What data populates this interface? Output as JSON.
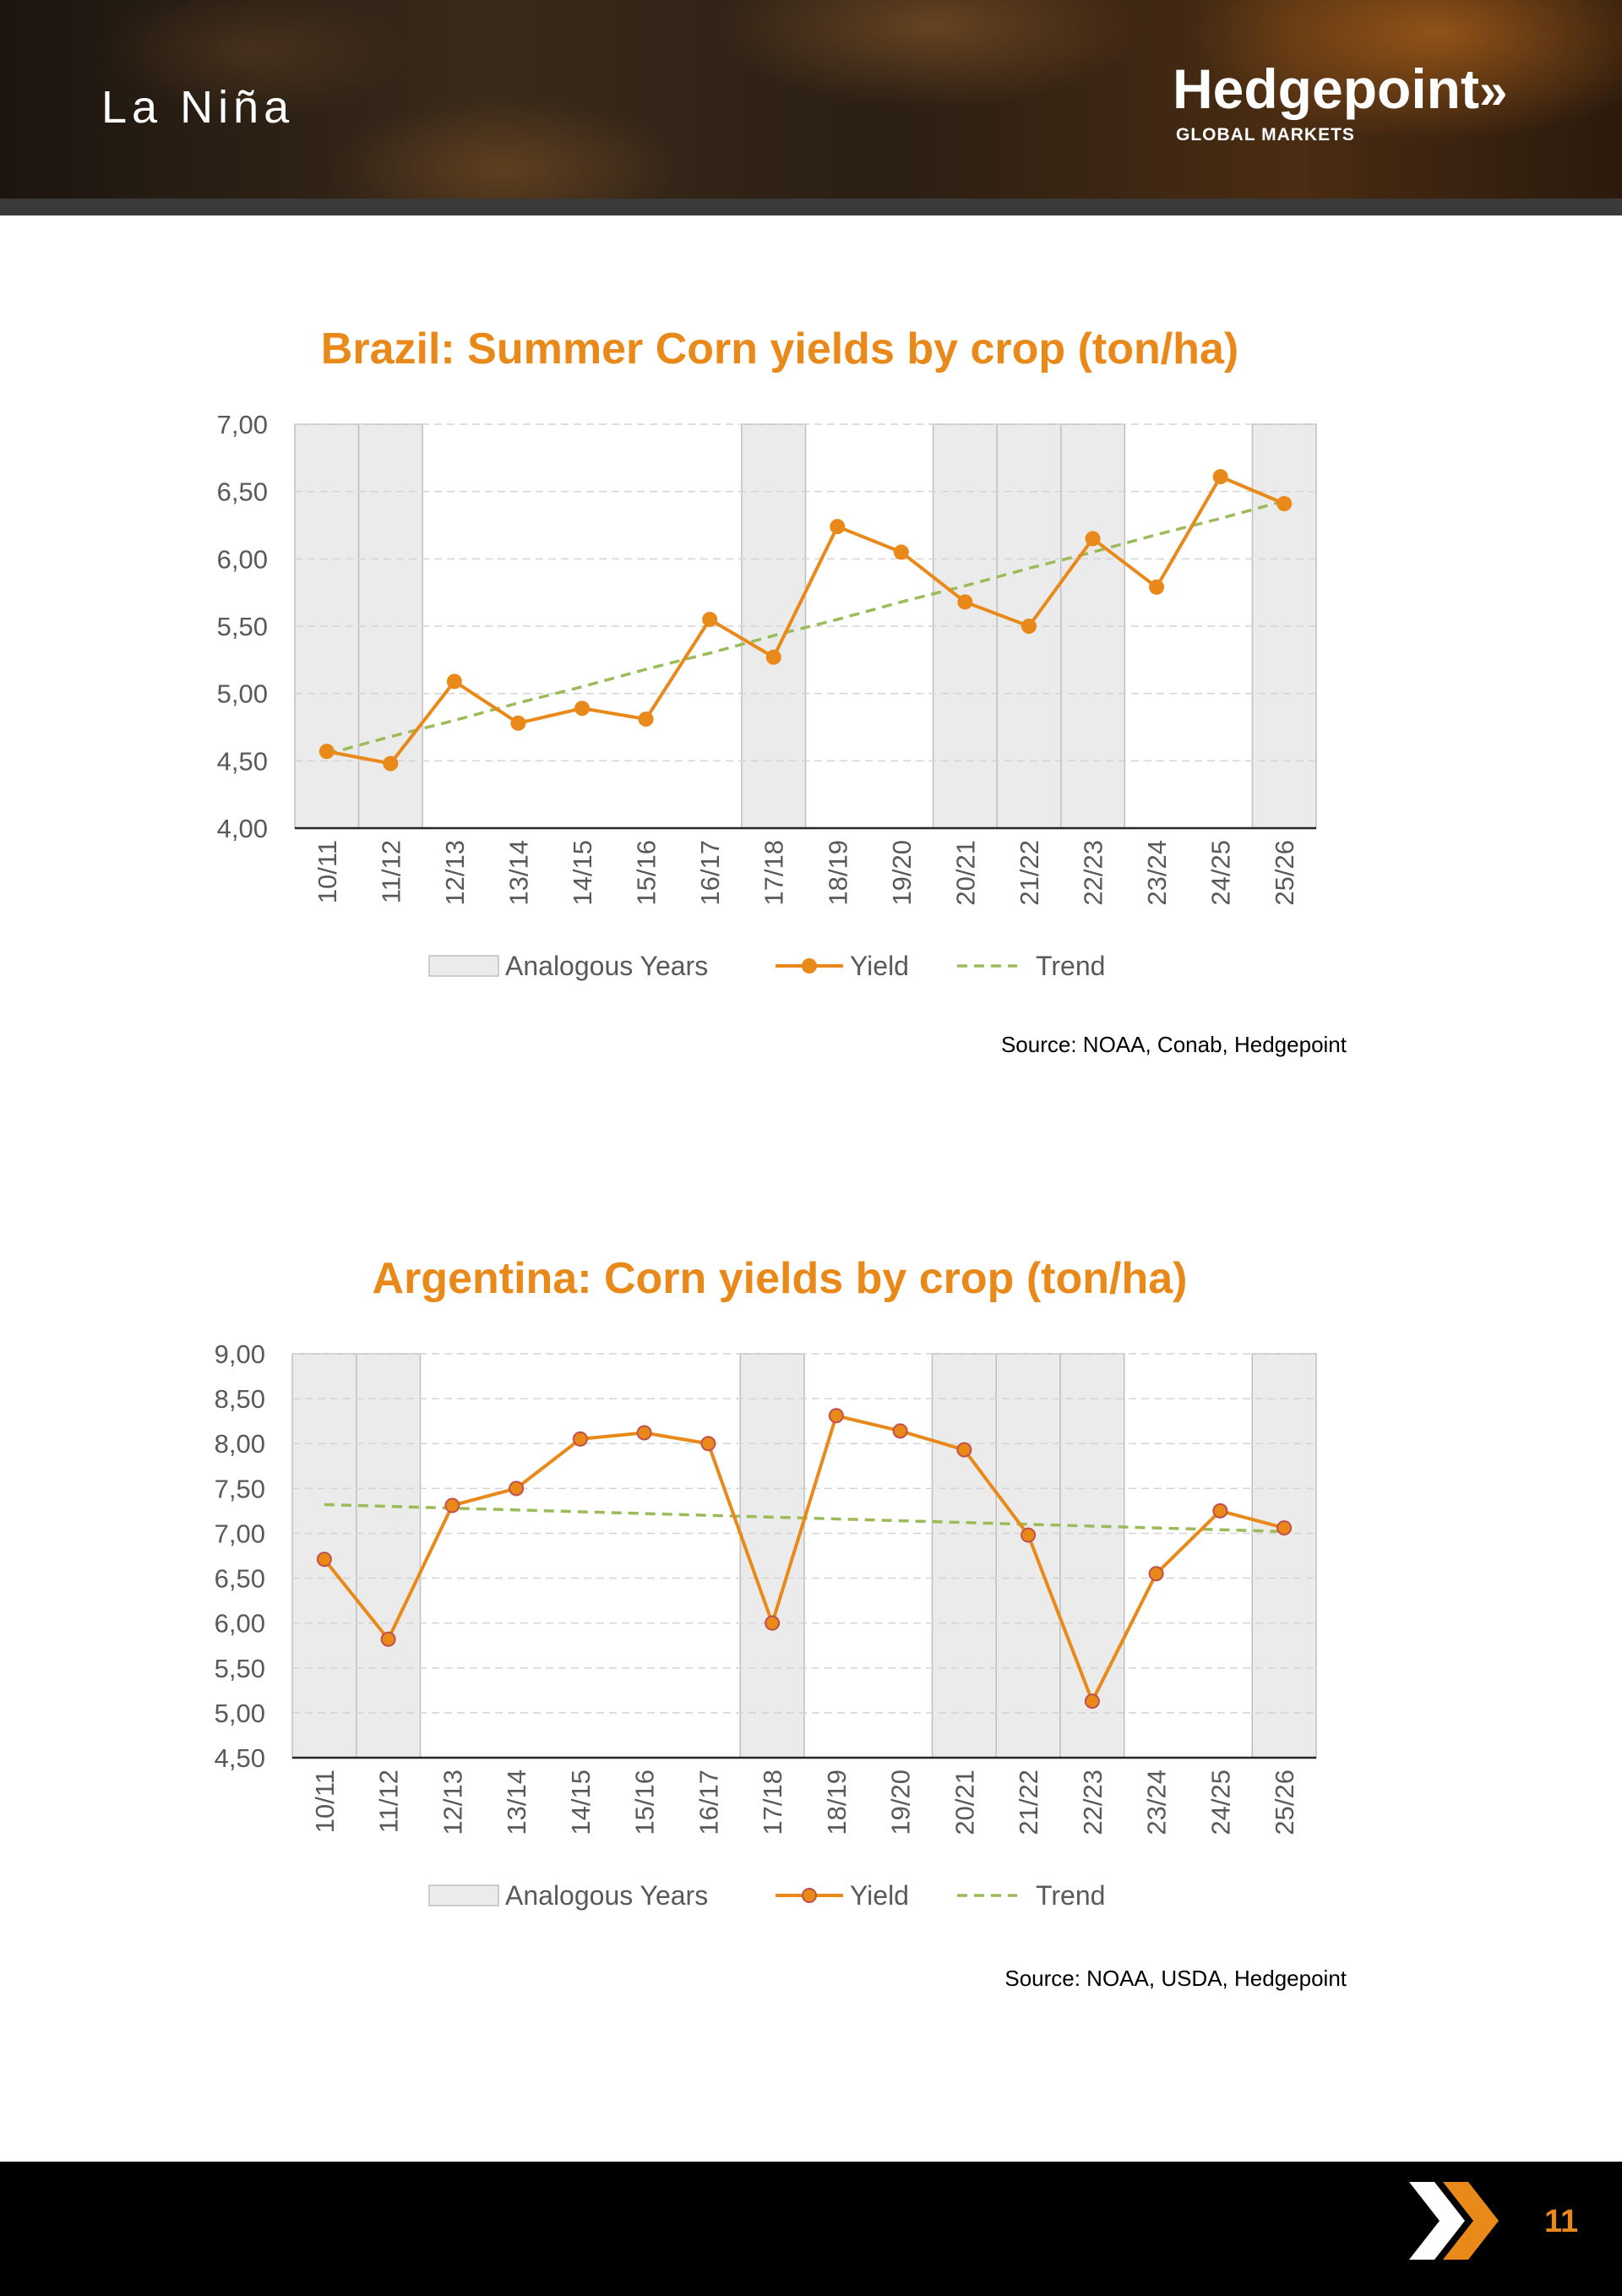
{
  "header": {
    "title": "La Niña",
    "brand_name": "Hedgepoint",
    "brand_chevrons": "»",
    "brand_subtitle": "GLOBAL MARKETS"
  },
  "colors": {
    "accent": "#e8891a",
    "trend": "#9bbb59",
    "band": "#ebebeb"
  },
  "chart_data": [
    {
      "id": "brazil",
      "type": "line",
      "title": "Brazil: Summer Corn yields by crop (ton/ha)",
      "categories": [
        "10/11",
        "11/12",
        "12/13",
        "13/14",
        "14/15",
        "15/16",
        "16/17",
        "17/18",
        "18/19",
        "19/20",
        "20/21",
        "21/22",
        "22/23",
        "23/24",
        "24/25",
        "25/26"
      ],
      "series": [
        {
          "name": "Yield",
          "values": [
            4.57,
            4.48,
            5.09,
            4.78,
            4.89,
            4.81,
            5.55,
            5.27,
            6.24,
            6.05,
            5.68,
            5.5,
            6.15,
            5.79,
            6.61,
            6.41
          ]
        },
        {
          "name": "Trend",
          "values": [
            4.55,
            4.68,
            4.8,
            4.93,
            5.05,
            5.18,
            5.3,
            5.43,
            5.55,
            5.68,
            5.8,
            5.93,
            6.05,
            6.18,
            6.3,
            6.43
          ]
        }
      ],
      "analogous_years": [
        "10/11",
        "11/12",
        "17/18",
        "20/21",
        "21/22",
        "22/23",
        "25/26"
      ],
      "yticks": [
        "4,00",
        "4,50",
        "5,00",
        "5,50",
        "6,00",
        "6,50",
        "7,00"
      ],
      "ylim": [
        4.0,
        7.0
      ],
      "legend": [
        "Analogous Years",
        "Yield",
        "Trend"
      ],
      "source": "Source: NOAA, Conab, Hedgepoint"
    },
    {
      "id": "argentina",
      "type": "line",
      "title": "Argentina: Corn yields by crop (ton/ha)",
      "categories": [
        "10/11",
        "11/12",
        "12/13",
        "13/14",
        "14/15",
        "15/16",
        "16/17",
        "17/18",
        "18/19",
        "19/20",
        "20/21",
        "21/22",
        "22/23",
        "23/24",
        "24/25",
        "25/26"
      ],
      "series": [
        {
          "name": "Yield",
          "values": [
            6.71,
            5.82,
            7.31,
            7.5,
            8.05,
            8.12,
            8.0,
            6.0,
            8.31,
            8.14,
            7.93,
            6.98,
            5.13,
            6.55,
            7.25,
            7.06
          ]
        },
        {
          "name": "Trend",
          "values": [
            7.32,
            7.3,
            7.28,
            7.26,
            7.24,
            7.22,
            7.2,
            7.18,
            7.16,
            7.14,
            7.12,
            7.1,
            7.08,
            7.06,
            7.04,
            7.02
          ]
        }
      ],
      "analogous_years": [
        "10/11",
        "11/12",
        "17/18",
        "20/21",
        "21/22",
        "22/23",
        "25/26"
      ],
      "yticks": [
        "4,50",
        "5,00",
        "5,50",
        "6,00",
        "6,50",
        "7,00",
        "7,50",
        "8,00",
        "8,50",
        "9,00"
      ],
      "ylim": [
        4.5,
        9.0
      ],
      "legend": [
        "Analogous Years",
        "Yield",
        "Trend"
      ],
      "source": "Source: NOAA, USDA, Hedgepoint"
    }
  ],
  "footer": {
    "page_number": "11"
  }
}
